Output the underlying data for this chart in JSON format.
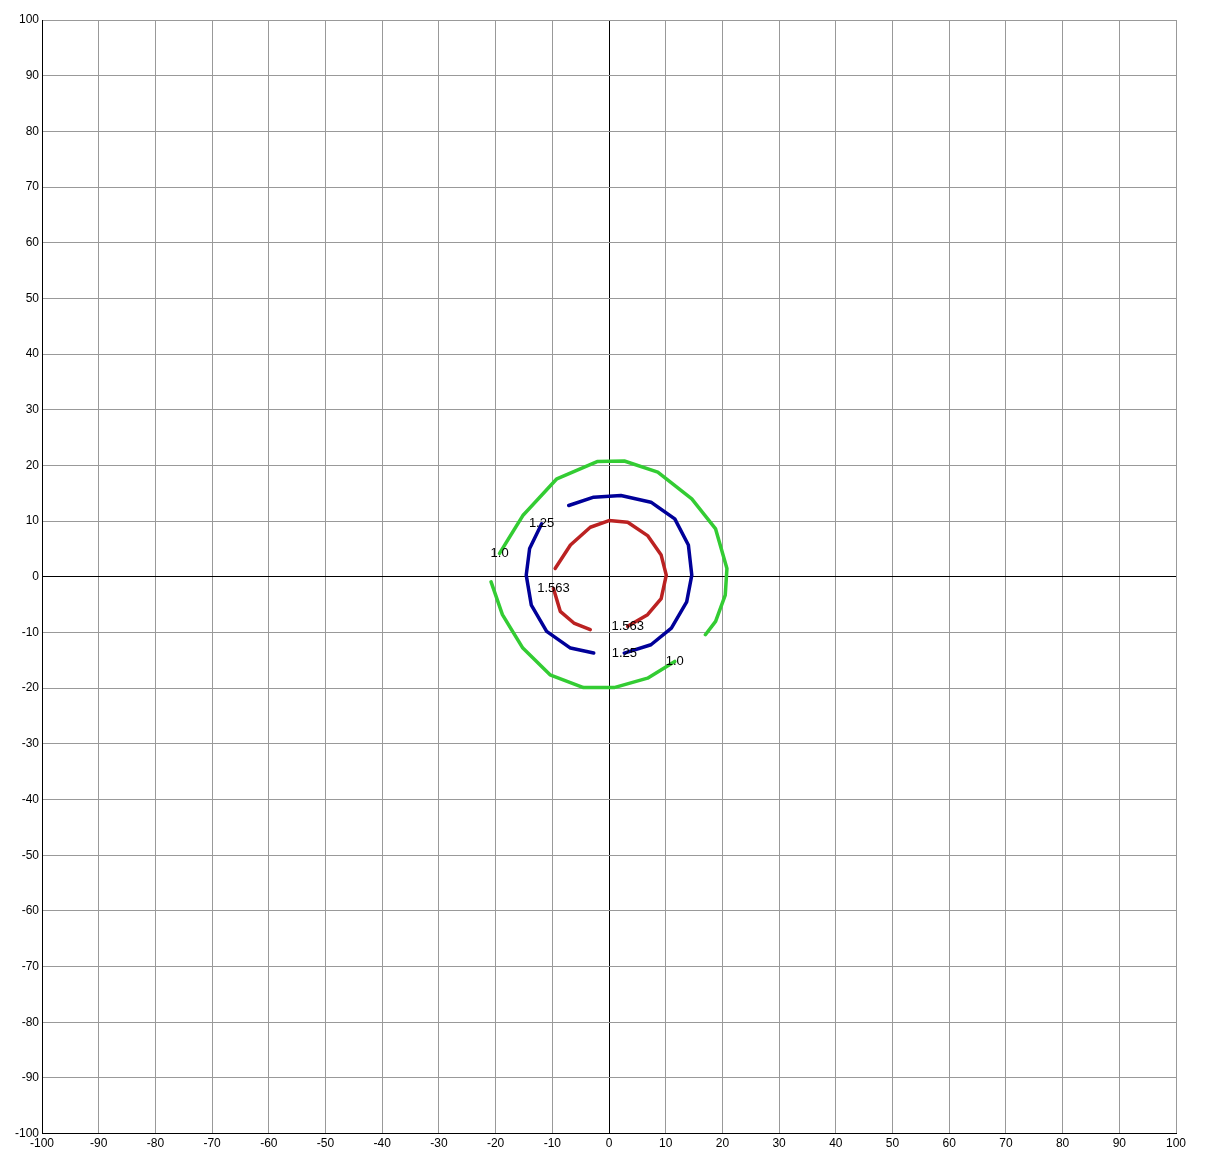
{
  "chart_data": {
    "type": "line",
    "xlim": [
      -100,
      100
    ],
    "ylim": [
      -100,
      100
    ],
    "xticks": [
      -100,
      -90,
      -80,
      -70,
      -60,
      -50,
      -40,
      -30,
      -20,
      -10,
      0,
      10,
      20,
      30,
      40,
      50,
      60,
      70,
      80,
      90,
      100
    ],
    "yticks": [
      -100,
      -90,
      -80,
      -70,
      -60,
      -50,
      -40,
      -30,
      -20,
      -10,
      0,
      10,
      20,
      30,
      40,
      50,
      60,
      70,
      80,
      90,
      100
    ],
    "grid": true,
    "marker": "none",
    "line_style": "solid",
    "series": [
      {
        "color": "#33cc33",
        "x": [
          -19.3,
          -15.2,
          -9.2,
          -2.1,
          2.7,
          8.6,
          14.6,
          18.8,
          20.8,
          20.5,
          18.8,
          17,
          null,
          11.6,
          6.8,
          0.9,
          -4.5,
          -10.4,
          -15.2,
          -18.8,
          -20.8
        ],
        "values": [
          4.2,
          11,
          17.6,
          20.7,
          20.8,
          18.8,
          14,
          8.6,
          1.5,
          -3.3,
          -8,
          -10.4,
          null,
          -15.2,
          -18.2,
          -19.9,
          -19.9,
          -17.6,
          -12.8,
          -6.8,
          -0.9
        ]
      },
      {
        "color": "#000099",
        "x": [
          -11.9,
          -14,
          -14.6,
          -13.7,
          -11,
          -6.8,
          -2.7,
          null,
          2.7,
          7.4,
          11,
          13.7,
          14.6,
          14,
          11.6,
          7.4,
          2.1,
          -2.7,
          -7.1
        ],
        "values": [
          9.5,
          5.1,
          0.3,
          -5.1,
          -9.8,
          -12.8,
          -13.7,
          null,
          -13.7,
          -12.2,
          -9.2,
          -4.5,
          0.3,
          5.7,
          10.4,
          13.4,
          14.6,
          14.3,
          12.8
        ]
      },
      {
        "color": "#bb2222",
        "x": [
          -9.5,
          -6.8,
          -3.3,
          0,
          3.3,
          6.8,
          9.2,
          10.1,
          9.2,
          6.8,
          3.3,
          null,
          -3.3,
          -6.2,
          -8.6,
          -9.8
        ],
        "values": [
          1.5,
          5.7,
          8.9,
          10.1,
          9.8,
          7.4,
          3.9,
          0.3,
          -3.9,
          -6.8,
          -8.9,
          null,
          -9.5,
          -8.3,
          -6.2,
          -2.1
        ]
      }
    ],
    "annotations": [
      {
        "text": "1.0",
        "x": -19.3,
        "y": 4.2
      },
      {
        "text": "1.0",
        "x": 11.6,
        "y": -15.2
      },
      {
        "text": "1.25",
        "x": -11.9,
        "y": 9.5
      },
      {
        "text": "1.25",
        "x": 2.7,
        "y": -13.7
      },
      {
        "text": "1.563",
        "x": -9.8,
        "y": -2.1
      },
      {
        "text": "1.563",
        "x": 3.3,
        "y": -8.9
      }
    ]
  }
}
